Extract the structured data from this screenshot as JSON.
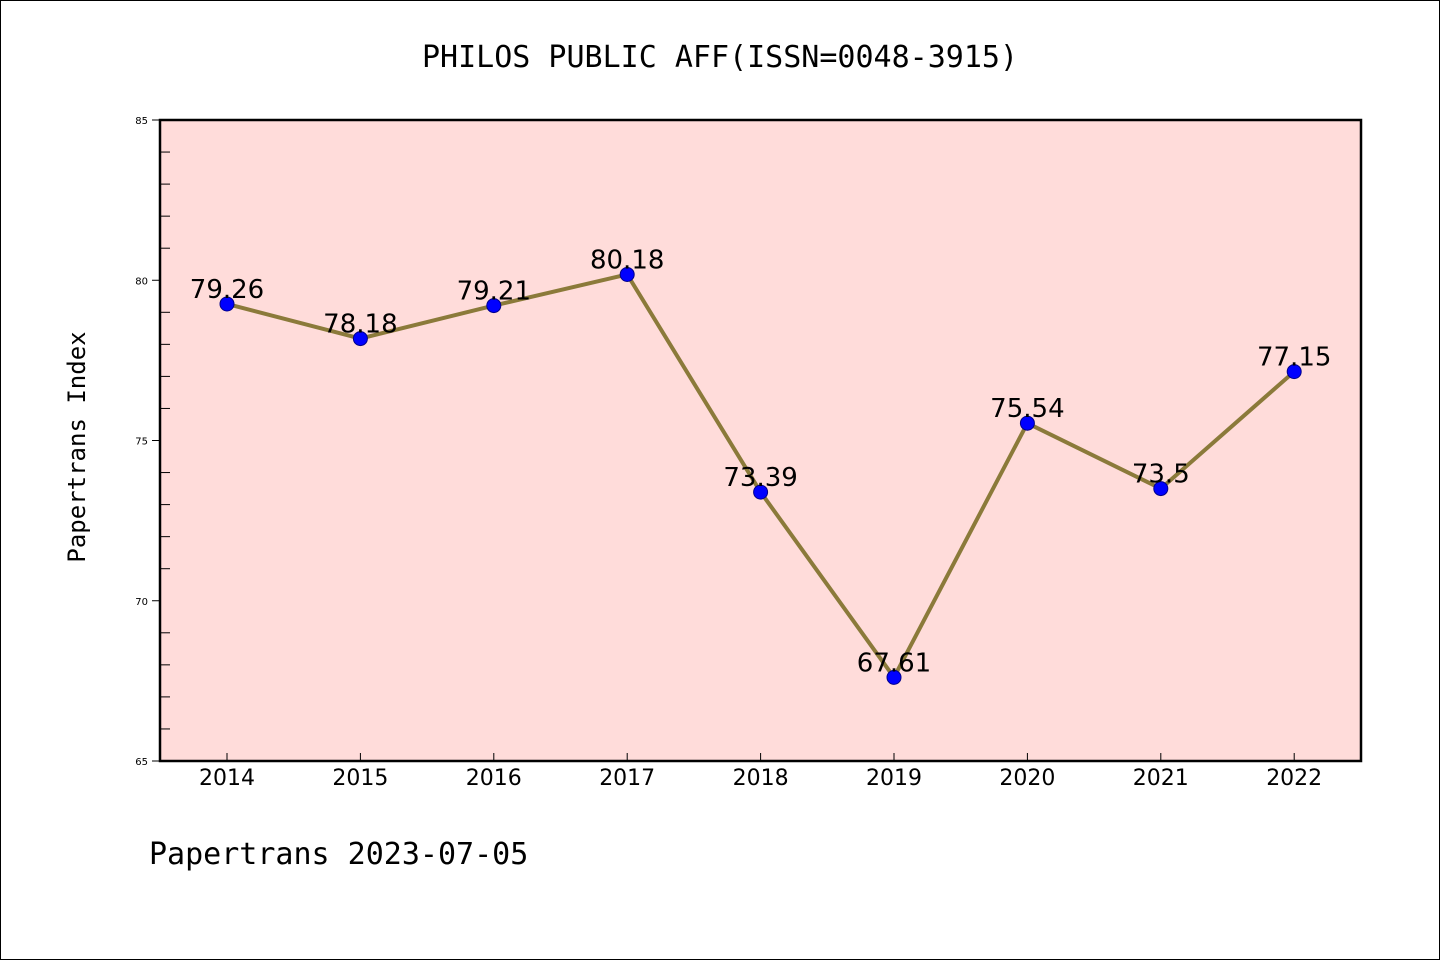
{
  "chart_data": {
    "type": "line",
    "title": "PHILOS PUBLIC AFF(ISSN=0048-3915)",
    "ylabel": "Papertrans Index",
    "xlabel": "",
    "footer": "Papertrans 2023-07-05",
    "categories": [
      "2014",
      "2015",
      "2016",
      "2017",
      "2018",
      "2019",
      "2020",
      "2021",
      "2022"
    ],
    "series": [
      {
        "values": [
          79.26,
          78.18,
          79.21,
          80.18,
          73.39,
          67.61,
          75.54,
          73.5,
          77.15
        ],
        "labels": [
          "79.26",
          "78.18",
          "79.21",
          "80.18",
          "73.39",
          "67.61",
          "75.54",
          "73.5",
          "77.15"
        ]
      }
    ],
    "ylim": [
      65,
      85
    ],
    "yticks": [
      "65",
      "70",
      "75",
      "80",
      "85"
    ],
    "grid": false,
    "colors": {
      "plot_background": "#FFDCDA",
      "line": "#8B7A3A",
      "marker": "#0000FF",
      "marker_edge": "#00008B"
    }
  }
}
